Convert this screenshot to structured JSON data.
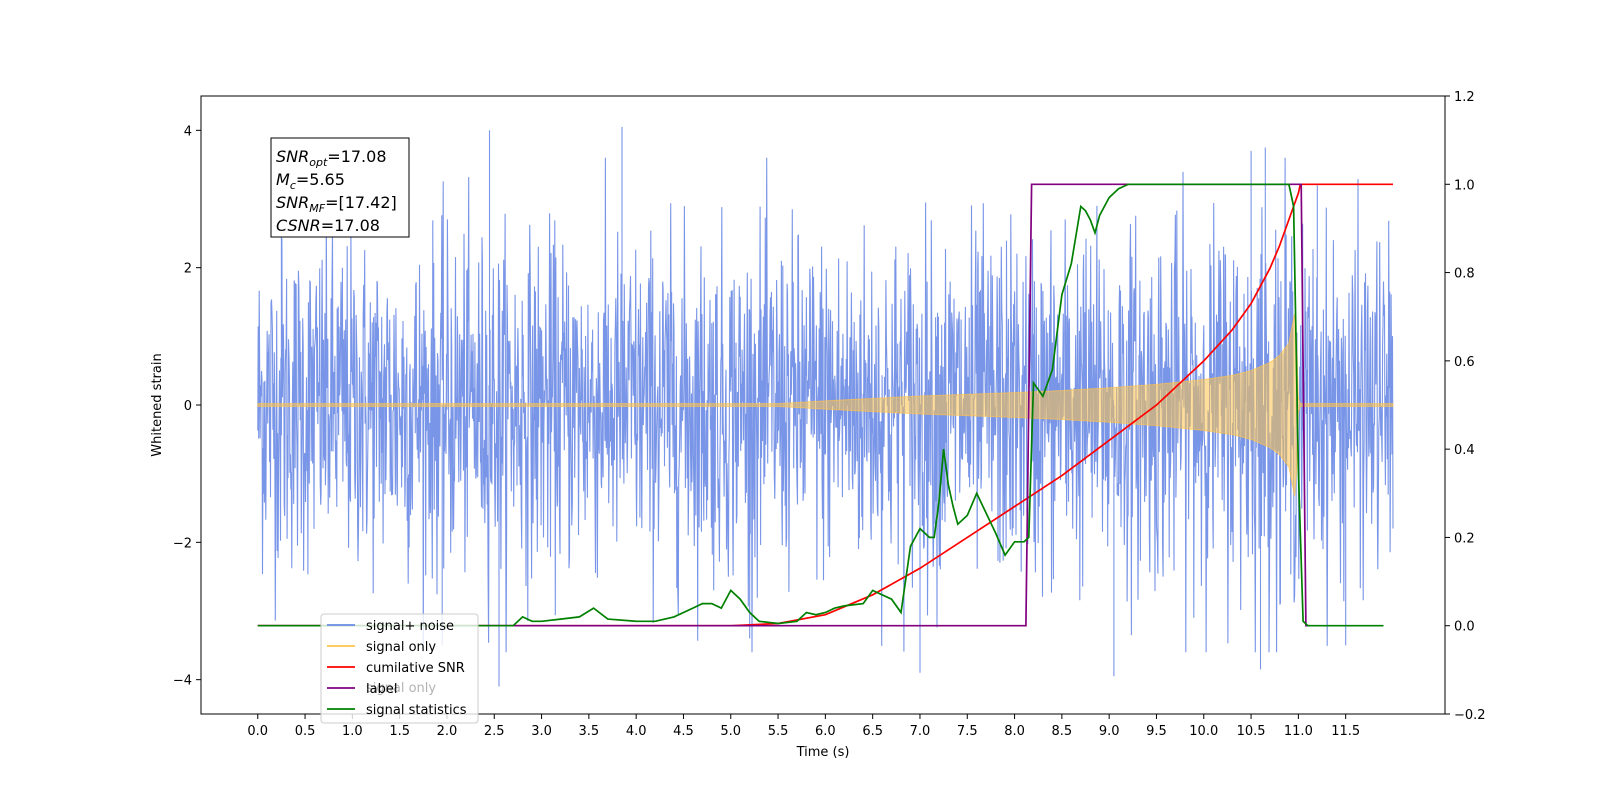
{
  "chart_data": {
    "type": "line",
    "xlabel": "Time (s)",
    "ylabel": "Whitened strain",
    "xlim": [
      -0.6,
      12.55
    ],
    "ylim": [
      -4.5,
      4.5
    ],
    "y2lim": [
      -0.2,
      1.2
    ],
    "x_ticks": [
      0.0,
      0.5,
      1.0,
      1.5,
      2.0,
      2.5,
      3.0,
      3.5,
      4.0,
      4.5,
      5.0,
      5.5,
      6.0,
      6.5,
      7.0,
      7.5,
      8.0,
      8.5,
      9.0,
      9.5,
      10.0,
      10.5,
      11.0,
      11.5
    ],
    "x_tick_labels": [
      "0.0",
      "0.5",
      "1.0",
      "1.5",
      "2.0",
      "2.5",
      "3.0",
      "3.5",
      "4.0",
      "4.5",
      "5.0",
      "5.5",
      "6.0",
      "6.5",
      "7.0",
      "7.5",
      "8.0",
      "8.5",
      "9.0",
      "9.5",
      "10.0",
      "10.5",
      "11.0",
      "11.5"
    ],
    "y_ticks": [
      -4,
      -2,
      0,
      2,
      4
    ],
    "y_tick_labels": [
      "−4",
      "−2",
      "0",
      "2",
      "4"
    ],
    "y2_ticks": [
      -0.2,
      0.0,
      0.2,
      0.4,
      0.6,
      0.8,
      1.0,
      1.2
    ],
    "y2_tick_labels": [
      "−0.2",
      "0.0",
      "0.2",
      "0.4",
      "0.6",
      "0.8",
      "1.0",
      "1.2"
    ],
    "grid": false,
    "legend_position": "bottom-left",
    "legend": [
      {
        "label": "signal+ noise",
        "color": "#6a8ae4"
      },
      {
        "label": "signal only",
        "color": "#ffc24a"
      },
      {
        "label": "cumilative SNR",
        "color": "#ff0000"
      },
      {
        "label": "label",
        "color": "#800080"
      },
      {
        "label": "signal statistics",
        "color": "#008000"
      }
    ],
    "legend_ghost_label": "signal only",
    "annotation": [
      {
        "main": "SNR",
        "sub": "opt",
        "rest": "=17.08"
      },
      {
        "main": "M",
        "sub": "c",
        "rest": "=5.65"
      },
      {
        "main": "SNR",
        "sub": "MF",
        "rest": "=[17.42]"
      },
      {
        "main": "CSNR",
        "sub": "",
        "rest": "=17.08"
      }
    ],
    "series": [
      {
        "name": "signal+ noise",
        "axis": "left",
        "color": "#6a8ae4",
        "x_range": [
          0.0,
          12.0
        ],
        "spread_x": [
          0.0,
          2.0,
          4.0,
          6.0,
          8.0,
          9.0,
          10.0,
          10.5,
          10.9,
          11.0,
          12.0
        ],
        "spread_y": [
          2.3,
          2.3,
          2.3,
          2.35,
          2.4,
          2.45,
          2.5,
          2.6,
          2.8,
          2.3,
          2.3
        ],
        "peaks_high": [
          [
            0.25,
            2.9
          ],
          [
            2.45,
            4.0
          ],
          [
            3.85,
            4.05
          ],
          [
            10.5,
            3.7
          ],
          [
            10.65,
            3.75
          ],
          [
            11.2,
            3.2
          ]
        ],
        "peaks_low": [
          [
            1.95,
            -3.5
          ],
          [
            2.55,
            -4.1
          ],
          [
            5.2,
            -3.4
          ],
          [
            7.0,
            -3.9
          ],
          [
            9.05,
            -3.95
          ],
          [
            10.6,
            -3.85
          ],
          [
            11.5,
            -3.5
          ]
        ]
      },
      {
        "name": "signal only",
        "axis": "left",
        "color": "#ffc24a",
        "envelope_x": [
          0.0,
          5.5,
          6.0,
          7.0,
          8.0,
          8.5,
          9.0,
          9.5,
          10.0,
          10.3,
          10.5,
          10.7,
          10.8,
          10.9,
          10.97,
          11.0,
          11.02,
          12.0
        ],
        "envelope_y": [
          0.02,
          0.02,
          0.06,
          0.13,
          0.18,
          0.21,
          0.25,
          0.3,
          0.37,
          0.43,
          0.5,
          0.62,
          0.72,
          0.9,
          1.4,
          0.1,
          0.02,
          0.02
        ]
      },
      {
        "name": "cumilative SNR",
        "axis": "right",
        "color": "#ff0000",
        "x": [
          0.0,
          5.0,
          5.5,
          6.0,
          6.5,
          7.0,
          7.5,
          8.0,
          8.5,
          9.0,
          9.5,
          10.0,
          10.3,
          10.5,
          10.7,
          10.8,
          10.9,
          10.95,
          11.0,
          11.02,
          11.05,
          12.0
        ],
        "values": [
          0.0,
          0.0,
          0.005,
          0.025,
          0.07,
          0.13,
          0.2,
          0.27,
          0.34,
          0.42,
          0.5,
          0.6,
          0.67,
          0.73,
          0.81,
          0.86,
          0.92,
          0.95,
          0.98,
          1.0,
          1.0,
          1.0
        ]
      },
      {
        "name": "label",
        "axis": "right",
        "color": "#800080",
        "x": [
          0.0,
          8.12,
          8.18,
          11.0,
          11.03,
          11.08,
          11.12
        ],
        "values": [
          0.0,
          0.0,
          1.0,
          1.0,
          1.0,
          0.0,
          0.0
        ]
      },
      {
        "name": "signal statistics",
        "axis": "right",
        "color": "#008000",
        "x": [
          0.0,
          2.7,
          2.8,
          2.9,
          3.0,
          3.2,
          3.4,
          3.55,
          3.7,
          4.0,
          4.2,
          4.4,
          4.6,
          4.7,
          4.8,
          4.9,
          5.0,
          5.1,
          5.2,
          5.3,
          5.5,
          5.7,
          5.8,
          5.9,
          6.0,
          6.1,
          6.2,
          6.4,
          6.5,
          6.6,
          6.7,
          6.8,
          6.9,
          7.0,
          7.1,
          7.15,
          7.2,
          7.25,
          7.3,
          7.35,
          7.4,
          7.5,
          7.6,
          7.8,
          7.9,
          8.0,
          8.1,
          8.15,
          8.2,
          8.3,
          8.4,
          8.5,
          8.6,
          8.7,
          8.75,
          8.8,
          8.85,
          8.9,
          9.0,
          9.1,
          9.2,
          9.3,
          9.5,
          10.0,
          10.5,
          10.9,
          10.95,
          11.0,
          11.05,
          11.1,
          11.9
        ],
        "values": [
          0.0,
          0.0,
          0.02,
          0.01,
          0.01,
          0.015,
          0.02,
          0.04,
          0.015,
          0.01,
          0.01,
          0.02,
          0.04,
          0.05,
          0.05,
          0.04,
          0.08,
          0.06,
          0.03,
          0.01,
          0.005,
          0.01,
          0.03,
          0.025,
          0.03,
          0.04,
          0.045,
          0.05,
          0.08,
          0.07,
          0.06,
          0.03,
          0.18,
          0.22,
          0.2,
          0.2,
          0.28,
          0.4,
          0.32,
          0.27,
          0.23,
          0.25,
          0.3,
          0.21,
          0.16,
          0.19,
          0.19,
          0.2,
          0.55,
          0.52,
          0.58,
          0.75,
          0.82,
          0.95,
          0.94,
          0.92,
          0.89,
          0.93,
          0.97,
          0.99,
          1.0,
          1.0,
          1.0,
          1.0,
          1.0,
          1.0,
          0.95,
          0.35,
          0.01,
          0.0,
          0.0
        ]
      }
    ]
  }
}
